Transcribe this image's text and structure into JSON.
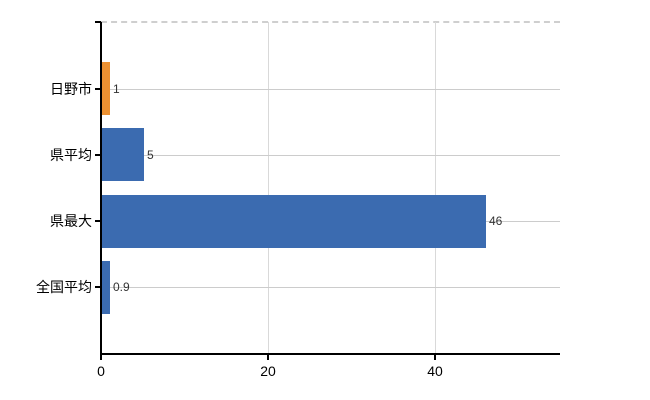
{
  "chart_data": {
    "type": "bar",
    "orientation": "horizontal",
    "title": "",
    "xlabel": "",
    "ylabel": "",
    "categories": [
      "日野市",
      "県平均",
      "県最大",
      "全国平均"
    ],
    "values": [
      1,
      5,
      46,
      0.9
    ],
    "value_labels": [
      "1",
      "5",
      "46",
      "0.9"
    ],
    "bar_colors": [
      "#ec9132",
      "#3b6bb0",
      "#3b6bb0",
      "#3b6bb0"
    ],
    "x_tick_values": [
      0,
      20,
      40
    ],
    "x_tick_labels": [
      "0",
      "20",
      "40"
    ],
    "xlim": [
      0,
      55
    ],
    "grid": true,
    "legend": false,
    "colors": {
      "highlight_bar": "#ec9132",
      "default_bar": "#3b6bb0",
      "axis": "#000000",
      "gridline": "#cccccc",
      "background": "#ffffff"
    }
  }
}
